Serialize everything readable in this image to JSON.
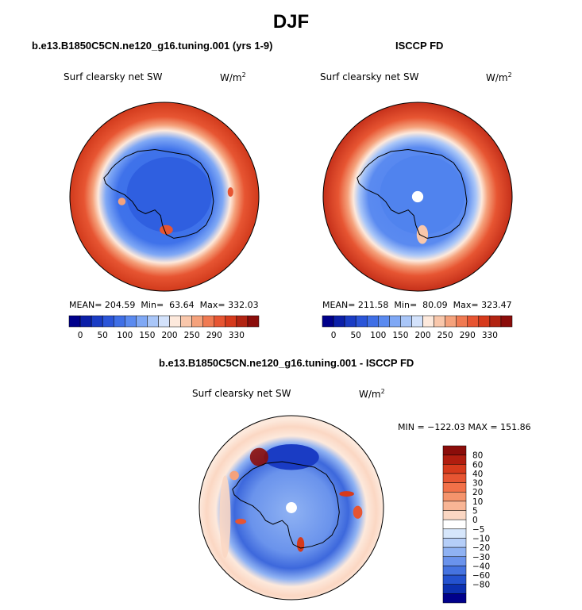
{
  "page_title": "DJF",
  "panels": [
    {
      "subtitle": "b.e13.B1850C5CN.ne120_g16.tuning.001 (yrs 1-9)",
      "variable": "Surf clearsky net SW",
      "units": "W/m",
      "units_exp": "2",
      "mean_label": "MEAN=",
      "mean": "204.59",
      "min_label": "Min=",
      "min": "63.64",
      "max_label": "Max=",
      "max": "332.03"
    },
    {
      "subtitle": "ISCCP FD",
      "variable": "Surf clearsky net SW",
      "units": "W/m",
      "units_exp": "2",
      "mean_label": "MEAN=",
      "mean": "211.58",
      "min_label": "Min=",
      "min": "80.09",
      "max_label": "Max=",
      "max": "323.47"
    }
  ],
  "difference_panel": {
    "subtitle": "b.e13.B1850C5CN.ne120_g16.tuning.001 - ISCCP FD",
    "variable": "Surf clearsky net SW",
    "units": "W/m",
    "units_exp": "2",
    "minmax_text": "MIN = −122.03 MAX = 151.86"
  },
  "chart_data": [
    {
      "type": "heatmap",
      "projection": "south polar stereographic",
      "title": "b.e13.B1850C5CN.ne120_g16.tuning.001 (yrs 1-9)",
      "variable": "Surf clearsky net SW",
      "units": "W/m^2",
      "stats": {
        "mean": 204.59,
        "min": 63.64,
        "max": 332.03
      },
      "colorbar": {
        "orientation": "horizontal",
        "tick_labels": [
          "0",
          "50",
          "100",
          "150",
          "200",
          "250",
          "290",
          "330"
        ],
        "colors": [
          "#00008b",
          "#0b1fa8",
          "#1a3cc4",
          "#2b55d8",
          "#3f6fe6",
          "#5a8af0",
          "#7fa8f5",
          "#a9c6f8",
          "#d3e2fb",
          "#fde9dc",
          "#f9c7ab",
          "#f5a27c",
          "#f07a52",
          "#e75532",
          "#d63a1c",
          "#b22412",
          "#8b0d0a"
        ]
      }
    },
    {
      "type": "heatmap",
      "projection": "south polar stereographic",
      "title": "ISCCP FD",
      "variable": "Surf clearsky net SW",
      "units": "W/m^2",
      "stats": {
        "mean": 211.58,
        "min": 80.09,
        "max": 323.47
      },
      "colorbar": {
        "orientation": "horizontal",
        "tick_labels": [
          "0",
          "50",
          "100",
          "150",
          "200",
          "250",
          "290",
          "330"
        ],
        "colors": [
          "#00008b",
          "#0b1fa8",
          "#1a3cc4",
          "#2b55d8",
          "#3f6fe6",
          "#5a8af0",
          "#7fa8f5",
          "#a9c6f8",
          "#d3e2fb",
          "#fde9dc",
          "#f9c7ab",
          "#f5a27c",
          "#f07a52",
          "#e75532",
          "#d63a1c",
          "#b22412",
          "#8b0d0a"
        ]
      }
    },
    {
      "type": "heatmap",
      "projection": "south polar stereographic",
      "title": "b.e13.B1850C5CN.ne120_g16.tuning.001 - ISCCP FD",
      "variable": "Surf clearsky net SW",
      "units": "W/m^2",
      "stats": {
        "min": -122.03,
        "max": 151.86
      },
      "colorbar": {
        "orientation": "vertical",
        "tick_labels": [
          "80",
          "60",
          "40",
          "30",
          "20",
          "10",
          "5",
          "0",
          "−5",
          "−10",
          "−20",
          "−30",
          "−40",
          "−60",
          "−80"
        ],
        "colors": [
          "#8b0d0a",
          "#b01d0f",
          "#d63a1c",
          "#e75532",
          "#f27149",
          "#f5946c",
          "#f8b595",
          "#fbd7c3",
          "#ffffff",
          "#d6e6fb",
          "#b5cef8",
          "#8fb2f3",
          "#6a93ec",
          "#4573e0",
          "#2452cf",
          "#0c30b0",
          "#00008b"
        ]
      }
    }
  ]
}
